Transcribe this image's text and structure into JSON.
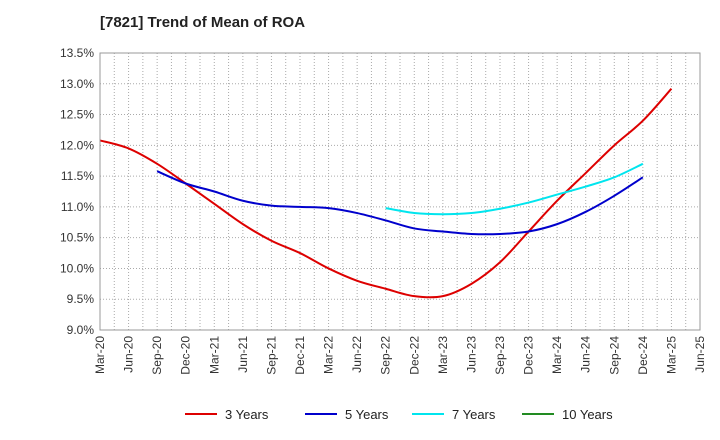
{
  "chart_data": {
    "type": "line",
    "title": "[7821]  Trend of Mean of ROA",
    "xlabel": "",
    "ylabel": "",
    "ylim": [
      9.0,
      13.5
    ],
    "y_ticks": [
      "9.0%",
      "9.5%",
      "10.0%",
      "10.5%",
      "11.0%",
      "11.5%",
      "12.0%",
      "12.5%",
      "13.0%",
      "13.5%"
    ],
    "x_ticks": [
      "Mar-20",
      "Jun-20",
      "Sep-20",
      "Dec-20",
      "Mar-21",
      "Jun-21",
      "Sep-21",
      "Dec-21",
      "Mar-22",
      "Jun-22",
      "Sep-22",
      "Dec-22",
      "Mar-23",
      "Jun-23",
      "Sep-23",
      "Dec-23",
      "Mar-24",
      "Jun-24",
      "Sep-24",
      "Dec-24",
      "Mar-25",
      "Jun-25"
    ],
    "grid": true,
    "legend_position": "bottom",
    "series": [
      {
        "name": "3 Years",
        "color": "#dd0000",
        "start_index": 0,
        "values": [
          12.08,
          11.95,
          11.7,
          11.38,
          11.05,
          10.72,
          10.45,
          10.25,
          10.0,
          9.8,
          9.67,
          9.55,
          9.55,
          9.75,
          10.1,
          10.6,
          11.1,
          11.55,
          12.0,
          12.4,
          12.92
        ]
      },
      {
        "name": "5 Years",
        "color": "#0000cc",
        "start_index": 2,
        "values": [
          11.58,
          11.38,
          11.25,
          11.1,
          11.02,
          11.0,
          10.98,
          10.9,
          10.78,
          10.65,
          10.6,
          10.56,
          10.56,
          10.6,
          10.72,
          10.92,
          11.18,
          11.48
        ]
      },
      {
        "name": "7 Years",
        "color": "#00e5ee",
        "start_index": 10,
        "values": [
          10.98,
          10.9,
          10.88,
          10.9,
          10.97,
          11.07,
          11.2,
          11.33,
          11.48,
          11.7
        ]
      },
      {
        "name": "10 Years",
        "color": "#228b22",
        "start_index": 0,
        "values": []
      }
    ]
  }
}
